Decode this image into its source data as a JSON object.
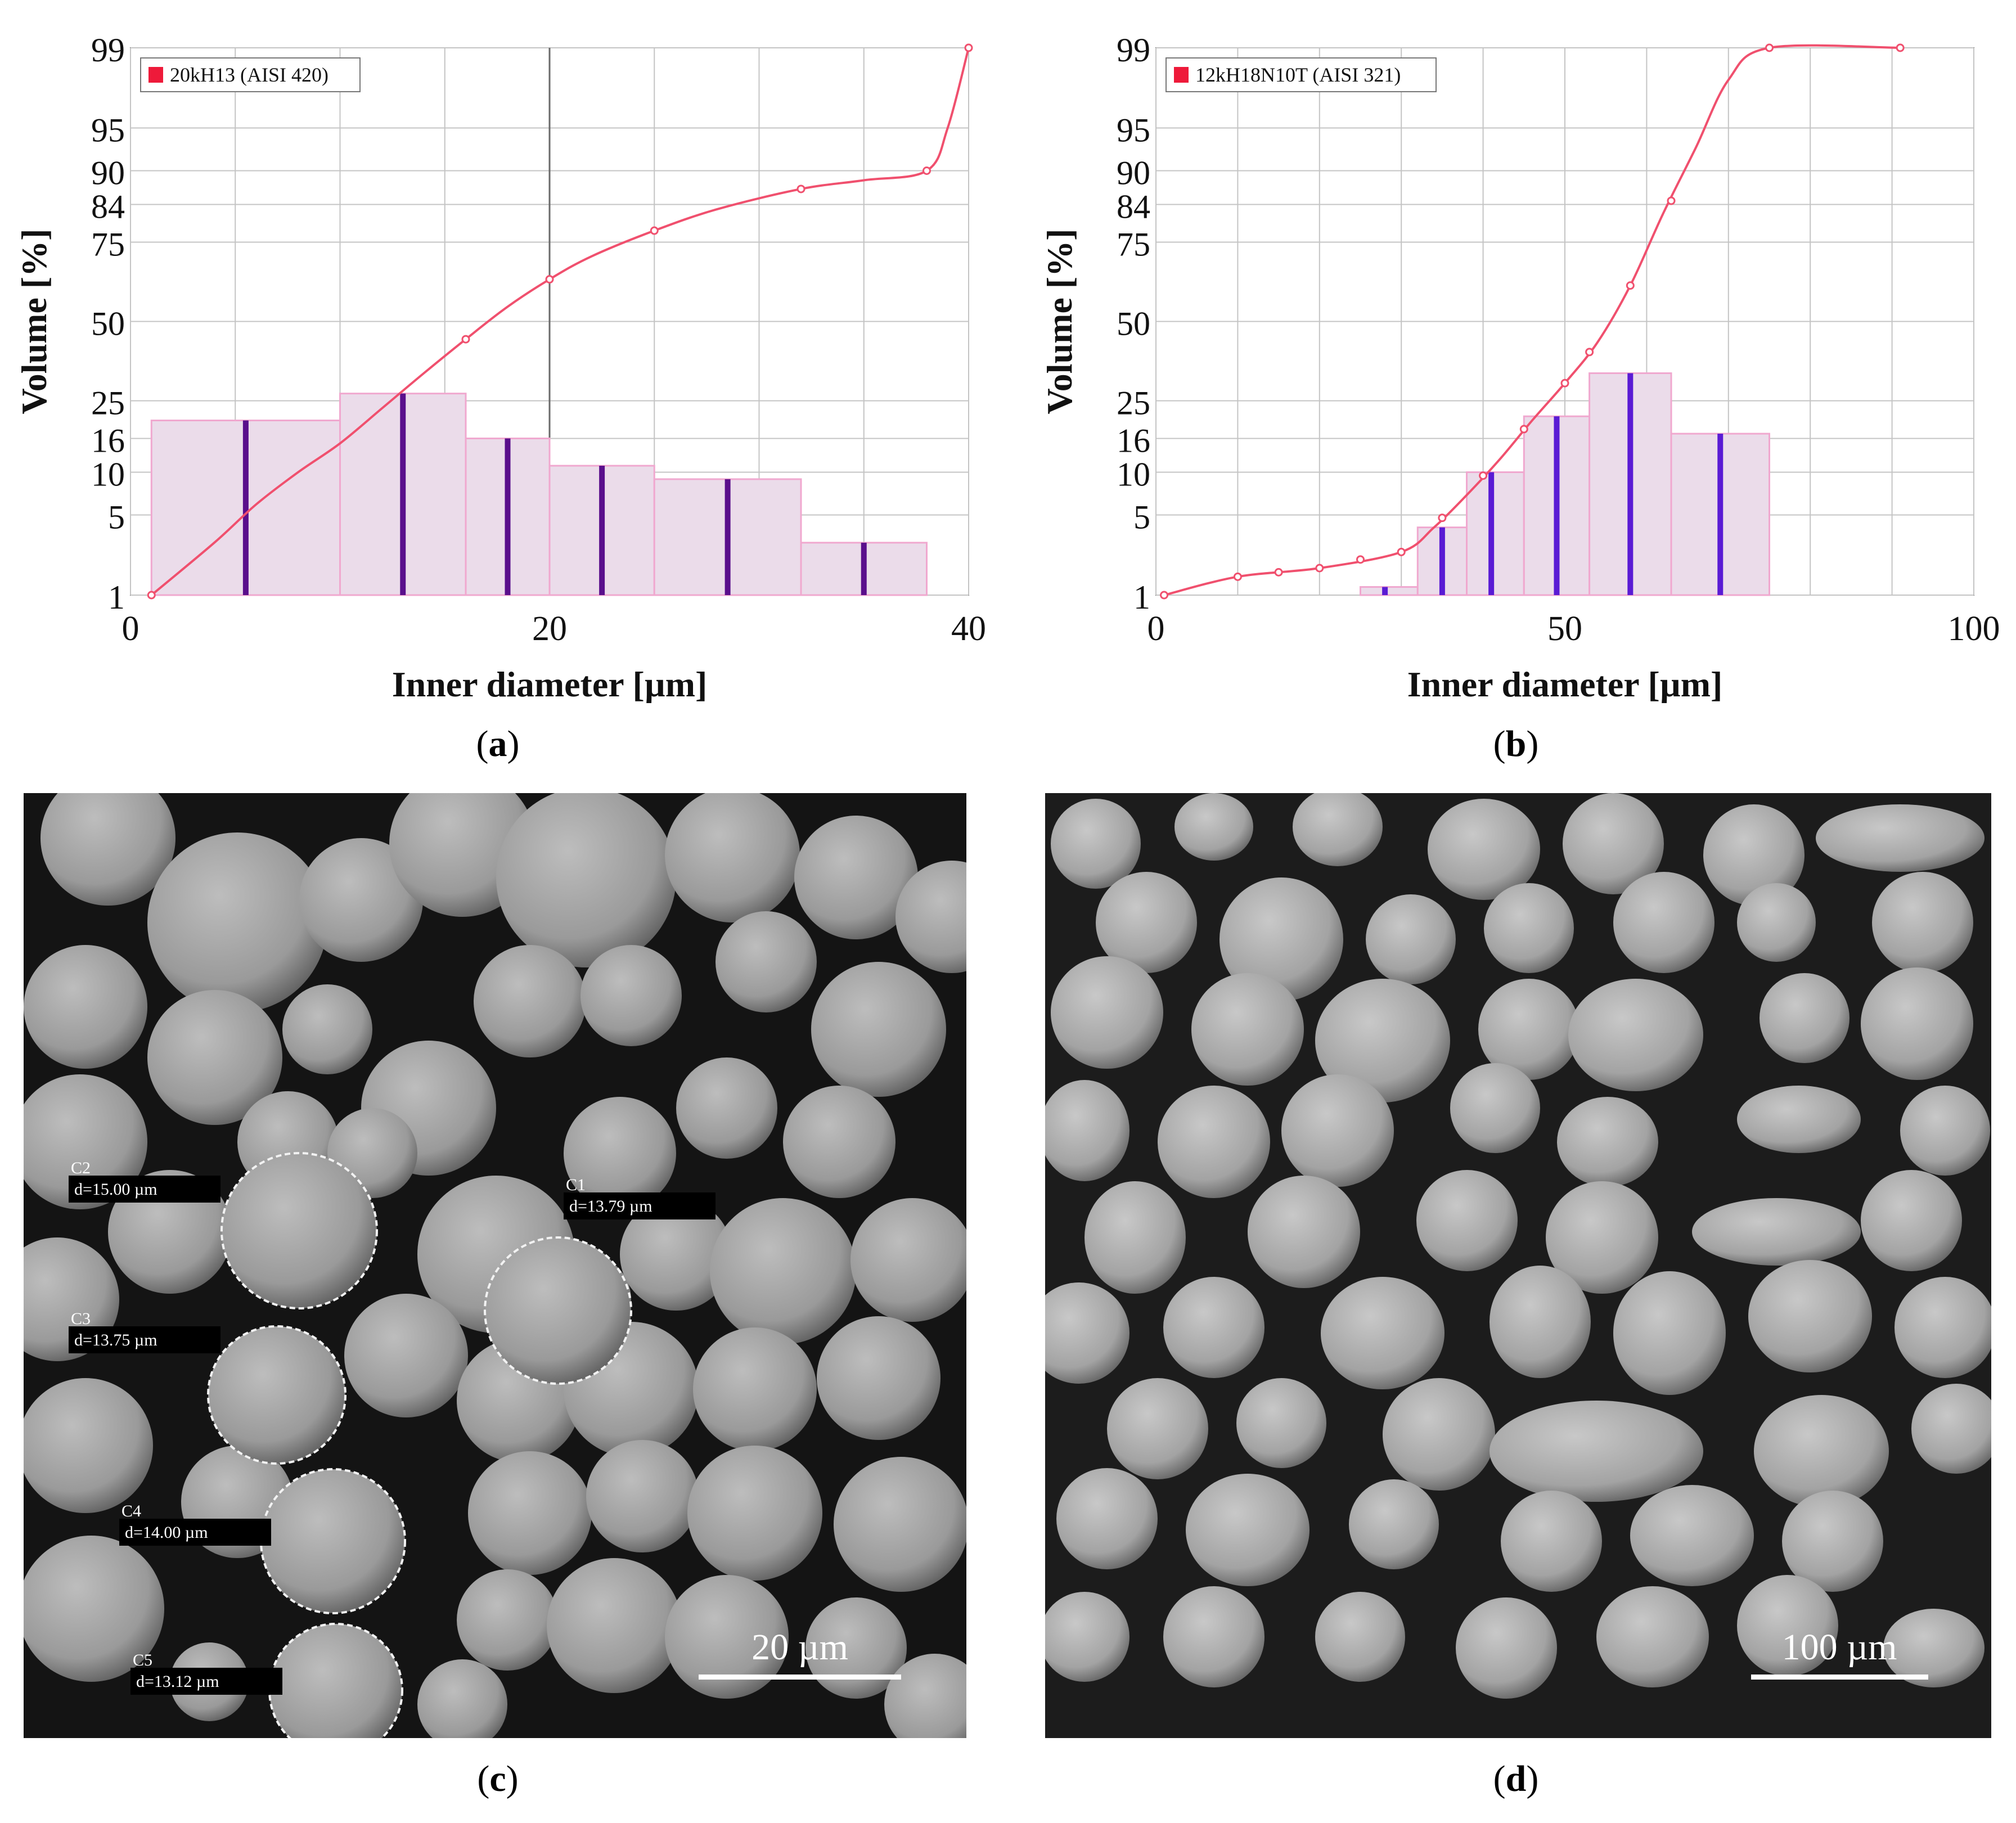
{
  "panels": {
    "a": {
      "caption_letter": "a"
    },
    "b": {
      "caption_letter": "b"
    },
    "c": {
      "caption_letter": "c",
      "scale_bar": "20 µm",
      "measurements": [
        {
          "id": "C1",
          "label": "d=13.79 µm"
        },
        {
          "id": "C2",
          "label": "d=15.00 µm"
        },
        {
          "id": "C3",
          "label": "d=13.75 µm"
        },
        {
          "id": "C4",
          "label": "d=14.00 µm"
        },
        {
          "id": "C5",
          "label": "d=13.12 µm"
        }
      ]
    },
    "d": {
      "caption_letter": "d",
      "scale_bar": "100 µm"
    }
  },
  "chart_data": [
    {
      "type": "bar",
      "legend": "20kH13 (AISI 420)",
      "xlabel": "Inner diameter [µm]",
      "ylabel": "Volume [%]",
      "xlim": [
        0,
        40
      ],
      "xticks": [
        0,
        20,
        40
      ],
      "yticks": [
        1,
        5,
        10,
        16,
        25,
        50,
        75,
        84,
        90,
        95,
        99
      ],
      "scale": "probability",
      "grid": true,
      "legend_position": "top-left",
      "colors": {
        "bar_fill": "#ebdcea",
        "bar_stroke": "#f0a8cf",
        "median_line": "#5a0f8c",
        "curve": "#f0506e",
        "legend_marker": "#ee1a3a"
      },
      "histogram": [
        {
          "from": 1,
          "to": 10,
          "value": 20,
          "center": 5.5
        },
        {
          "from": 10,
          "to": 16,
          "value": 27,
          "center": 13
        },
        {
          "from": 16,
          "to": 20,
          "value": 16,
          "center": 18
        },
        {
          "from": 20,
          "to": 25,
          "value": 11,
          "center": 22.5
        },
        {
          "from": 25,
          "to": 32,
          "value": 9,
          "center": 28.5
        },
        {
          "from": 32,
          "to": 38,
          "value": 3,
          "center": 35
        }
      ],
      "cumulative_curve": [
        {
          "x": 1,
          "y": 1
        },
        {
          "x": 4,
          "y": 3
        },
        {
          "x": 6,
          "y": 6
        },
        {
          "x": 8,
          "y": 10
        },
        {
          "x": 10,
          "y": 15
        },
        {
          "x": 12,
          "y": 23
        },
        {
          "x": 14,
          "y": 33
        },
        {
          "x": 16,
          "y": 44
        },
        {
          "x": 18,
          "y": 55
        },
        {
          "x": 20,
          "y": 64
        },
        {
          "x": 22,
          "y": 71
        },
        {
          "x": 25,
          "y": 78
        },
        {
          "x": 28,
          "y": 83
        },
        {
          "x": 32,
          "y": 87
        },
        {
          "x": 35,
          "y": 88.5
        },
        {
          "x": 38,
          "y": 90
        },
        {
          "x": 39,
          "y": 95
        },
        {
          "x": 40,
          "y": 99
        }
      ],
      "curve_markers": [
        1,
        16,
        20,
        25,
        32,
        38,
        40
      ]
    },
    {
      "type": "bar",
      "legend": "12kH18N10T (AISI 321)",
      "xlabel": "Inner diameter [µm]",
      "ylabel": "Volume [%]",
      "xlim": [
        0,
        100
      ],
      "xticks": [
        0,
        50,
        100
      ],
      "yticks": [
        1,
        5,
        10,
        16,
        25,
        50,
        75,
        84,
        90,
        95,
        99
      ],
      "scale": "probability",
      "grid": true,
      "legend_position": "top-left",
      "colors": {
        "bar_fill": "#ebdcea",
        "bar_stroke": "#f0a8cf",
        "median_line": "#5a1bd4",
        "curve": "#f0506e",
        "legend_marker": "#ee1a3a"
      },
      "histogram": [
        {
          "from": 1,
          "to": 10,
          "value": 1,
          "center": 5
        },
        {
          "from": 10,
          "to": 25,
          "value": 0.8,
          "center": 17
        },
        {
          "from": 25,
          "to": 32,
          "value": 1.2,
          "center": 28
        },
        {
          "from": 32,
          "to": 38,
          "value": 4,
          "center": 35
        },
        {
          "from": 38,
          "to": 45,
          "value": 10,
          "center": 41
        },
        {
          "from": 45,
          "to": 53,
          "value": 21,
          "center": 49
        },
        {
          "from": 53,
          "to": 63,
          "value": 33,
          "center": 58
        },
        {
          "from": 63,
          "to": 75,
          "value": 17,
          "center": 69
        }
      ],
      "cumulative_curve": [
        {
          "x": 1,
          "y": 1
        },
        {
          "x": 10,
          "y": 1.5
        },
        {
          "x": 20,
          "y": 1.8
        },
        {
          "x": 30,
          "y": 2.5
        },
        {
          "x": 34,
          "y": 4
        },
        {
          "x": 38,
          "y": 7
        },
        {
          "x": 42,
          "y": 12
        },
        {
          "x": 46,
          "y": 20
        },
        {
          "x": 50,
          "y": 30
        },
        {
          "x": 54,
          "y": 43
        },
        {
          "x": 58,
          "y": 62
        },
        {
          "x": 62,
          "y": 82
        },
        {
          "x": 66,
          "y": 93
        },
        {
          "x": 70,
          "y": 98
        },
        {
          "x": 75,
          "y": 99
        },
        {
          "x": 91,
          "y": 99
        }
      ],
      "curve_markers": [
        1,
        10,
        15,
        20,
        25,
        30,
        35,
        40,
        45,
        50,
        53,
        58,
        63,
        75,
        91
      ]
    }
  ]
}
